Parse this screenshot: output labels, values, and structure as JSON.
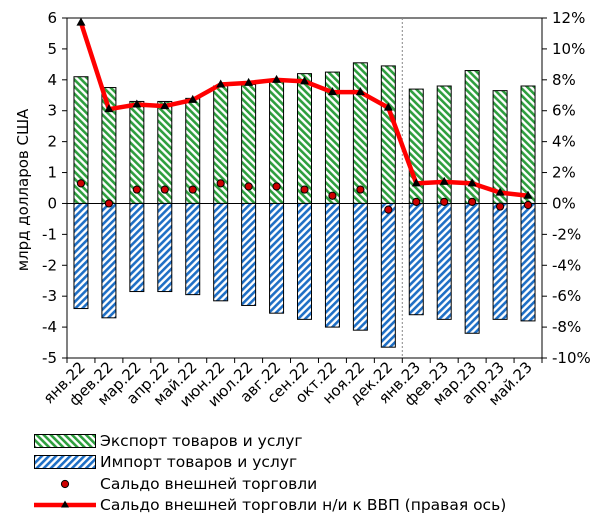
{
  "chart_data": {
    "type": "bar",
    "categories": [
      "янв.22",
      "фев.22",
      "мар.22",
      "апр.22",
      "май.22",
      "июн.22",
      "июл.22",
      "авг.22",
      "сен.22",
      "окт.22",
      "ноя.22",
      "дек.22",
      "янв.23",
      "фев.23",
      "мар.23",
      "апр.23",
      "май.23"
    ],
    "ylabel": "млрд долларов США",
    "ylim": [
      -5,
      6
    ],
    "y2lim": [
      -10,
      12
    ],
    "y_ticks": [
      "-5",
      "-4",
      "-3",
      "-2",
      "-1",
      "0",
      "1",
      "2",
      "3",
      "4",
      "5",
      "6"
    ],
    "y2_ticks": [
      "-10%",
      "-8%",
      "-6%",
      "-4%",
      "-2%",
      "0%",
      "2%",
      "4%",
      "6%",
      "8%",
      "10%",
      "12%"
    ],
    "series": [
      {
        "name": "Экспорт товаров и услуг",
        "kind": "bar",
        "color": "#2e9e3e",
        "values": [
          4.1,
          3.75,
          3.3,
          3.3,
          3.4,
          3.8,
          3.85,
          4.0,
          4.2,
          4.25,
          4.55,
          4.45,
          3.7,
          3.8,
          4.3,
          3.65,
          3.8
        ]
      },
      {
        "name": "Импорт товаров и услуг",
        "kind": "bar",
        "color": "#1f6fc5",
        "values": [
          -3.4,
          -3.7,
          -2.85,
          -2.85,
          -2.95,
          -3.15,
          -3.3,
          -3.55,
          -3.75,
          -4.0,
          -4.1,
          -4.65,
          -3.6,
          -3.75,
          -4.2,
          -3.75,
          -3.8
        ]
      },
      {
        "name": "Сальдо внешней торговли",
        "kind": "dot",
        "color": "#cc0000",
        "values": [
          0.65,
          0.0,
          0.45,
          0.45,
          0.45,
          0.65,
          0.55,
          0.55,
          0.45,
          0.25,
          0.45,
          -0.2,
          0.05,
          0.05,
          0.05,
          -0.1,
          -0.05
        ]
      },
      {
        "name": "Сальдо внешней торговли н/и к ВВП (правая ось)",
        "kind": "line",
        "axis": "right",
        "color": "#ff0000",
        "values": [
          11.7,
          6.1,
          6.4,
          6.3,
          6.7,
          7.7,
          7.8,
          8.0,
          7.9,
          7.2,
          7.2,
          6.2,
          1.3,
          1.4,
          1.3,
          0.7,
          0.5
        ]
      }
    ],
    "grid": false,
    "legend": "bottom"
  }
}
